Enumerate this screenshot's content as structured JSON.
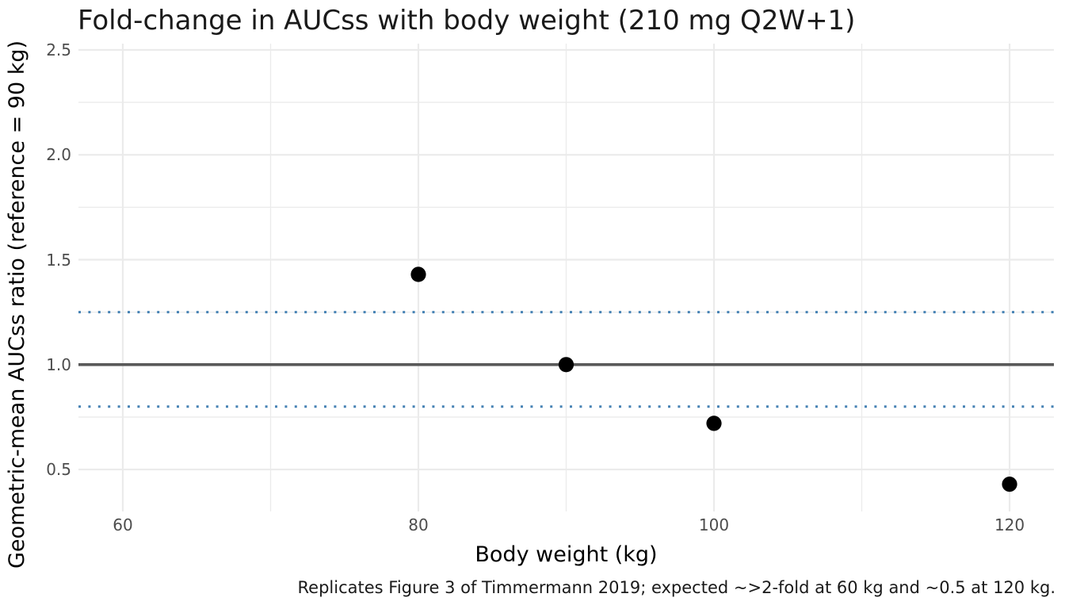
{
  "chart_data": {
    "type": "scatter",
    "title": "Fold-change in AUCss with body weight (210 mg Q2W+1)",
    "xlabel": "Body weight (kg)",
    "ylabel": "Geometric-mean AUCss ratio (reference = 90 kg)",
    "caption": "Replicates Figure 3 of Timmermann 2019; expected ~>2-fold at 60 kg and ~0.5 at 120 kg.",
    "points": [
      {
        "x": 80,
        "y": 1.43
      },
      {
        "x": 90,
        "y": 1.0
      },
      {
        "x": 100,
        "y": 0.72
      },
      {
        "x": 120,
        "y": 0.43
      }
    ],
    "x_ticks": [
      {
        "value": 60,
        "label": "60"
      },
      {
        "value": 80,
        "label": "80"
      },
      {
        "value": 100,
        "label": "100"
      },
      {
        "value": 120,
        "label": "120"
      }
    ],
    "y_ticks": [
      {
        "value": 0.5,
        "label": "0.5"
      },
      {
        "value": 1.0,
        "label": "1.0"
      },
      {
        "value": 1.5,
        "label": "1.5"
      },
      {
        "value": 2.0,
        "label": "2.0"
      },
      {
        "value": 2.5,
        "label": "2.5"
      }
    ],
    "x_minor_gridlines": [
      70,
      90,
      110
    ],
    "y_minor_gridlines": [
      0.75,
      1.25,
      1.75,
      2.25
    ],
    "xlim": [
      57,
      123
    ],
    "ylim": [
      0.3,
      2.53
    ],
    "grid": true,
    "legend": "none",
    "reference_lines": [
      {
        "y": 1.0,
        "style": "solid"
      },
      {
        "y": 1.25,
        "style": "dotted"
      },
      {
        "y": 0.8,
        "style": "dotted"
      }
    ]
  },
  "colors": {
    "background": "#ffffff",
    "point": "#000000",
    "reference_line_solid": "#595959",
    "reference_line_dotted": "#4682b4",
    "gridline": "#ebebeb",
    "title_text": "#1a1a1a",
    "axis_title_text": "#000000",
    "tick_text": "#4d4d4d",
    "caption_text": "#1a1a1a"
  }
}
